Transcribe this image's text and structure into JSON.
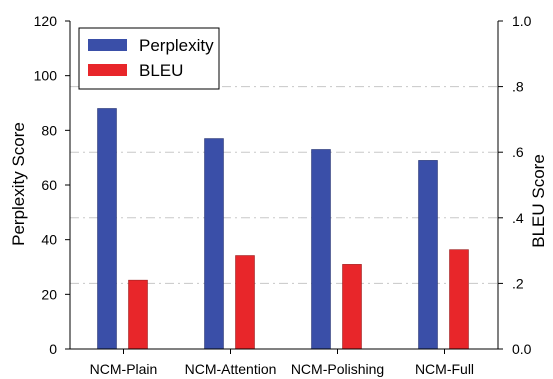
{
  "chart_data": {
    "type": "bar",
    "title": "",
    "categories": [
      "NCM-Plain",
      "NCM-Attention",
      "NCM-Polishing",
      "NCM-Full"
    ],
    "series": [
      {
        "name": "Perplexity",
        "axis": "left",
        "color": "#3a4fa8",
        "values": [
          88,
          77,
          73,
          69
        ]
      },
      {
        "name": "BLEU",
        "axis": "right",
        "color": "#e8262a",
        "values": [
          0.21,
          0.285,
          0.258,
          0.303
        ]
      }
    ],
    "ylabel": "Perplexity Score",
    "ylabel_right": "BLEU Score",
    "ylim": [
      0,
      120
    ],
    "ylim_right": [
      0,
      1.0
    ],
    "yticks": [
      "0",
      "20",
      "40",
      "60",
      "80",
      "100",
      "120"
    ],
    "yticks_right": [
      "0.0",
      ".2",
      ".4",
      ".6",
      ".8",
      "1.0"
    ],
    "grid": "dashed horizontal at right-axis ticks",
    "legend_position": "top-left"
  }
}
